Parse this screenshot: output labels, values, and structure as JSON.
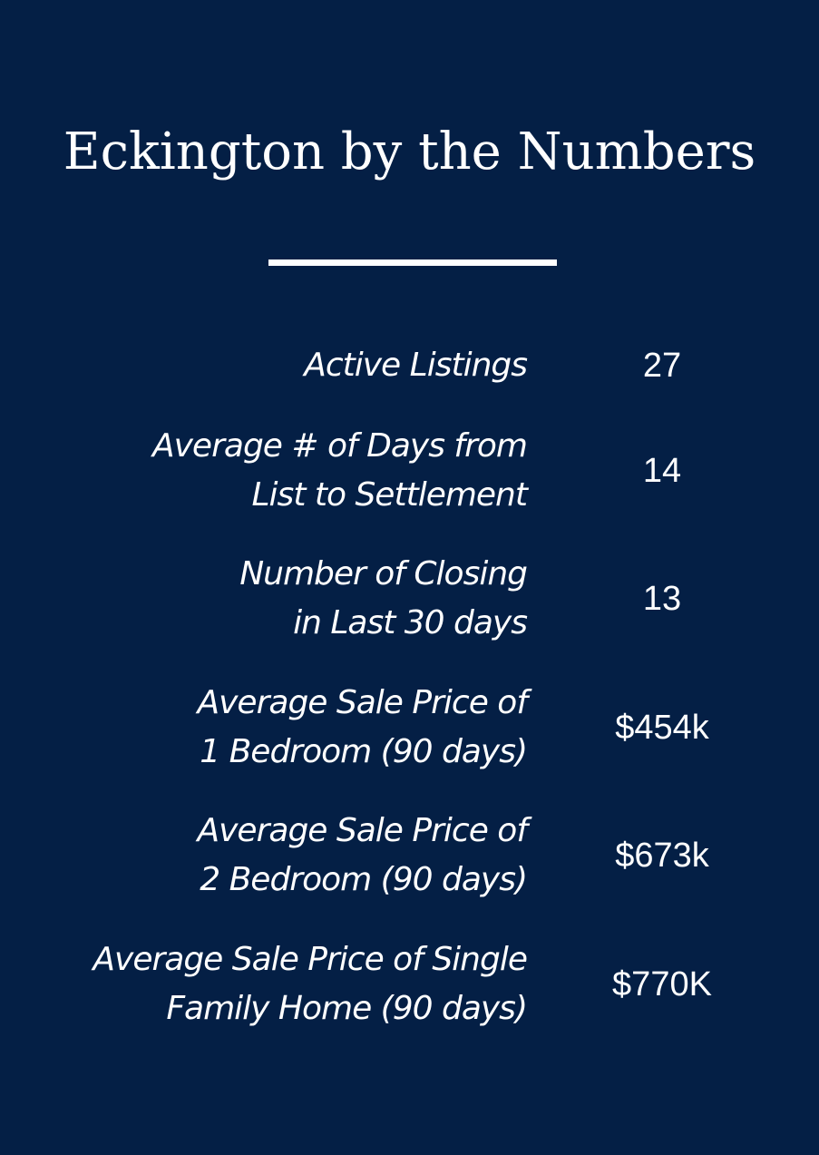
{
  "header": {
    "title": "Eckington by the Numbers"
  },
  "colors": {
    "background": "#041f45",
    "text": "#ffffff"
  },
  "stats": [
    {
      "label_lines": [
        "Active Listings"
      ],
      "value": "27"
    },
    {
      "label_lines": [
        "Average # of Days from",
        "List to Settlement"
      ],
      "value": "14"
    },
    {
      "label_lines": [
        "Number of Closing",
        "in Last 30 days"
      ],
      "value": "13"
    },
    {
      "label_lines": [
        "Average Sale Price of",
        "1 Bedroom (90 days)"
      ],
      "value": "$454k"
    },
    {
      "label_lines": [
        "Average Sale Price of",
        "2 Bedroom (90 days)"
      ],
      "value": "$673k"
    },
    {
      "label_lines": [
        "Average Sale Price of Single",
        "Family Home (90 days)"
      ],
      "value": "$770K"
    }
  ]
}
